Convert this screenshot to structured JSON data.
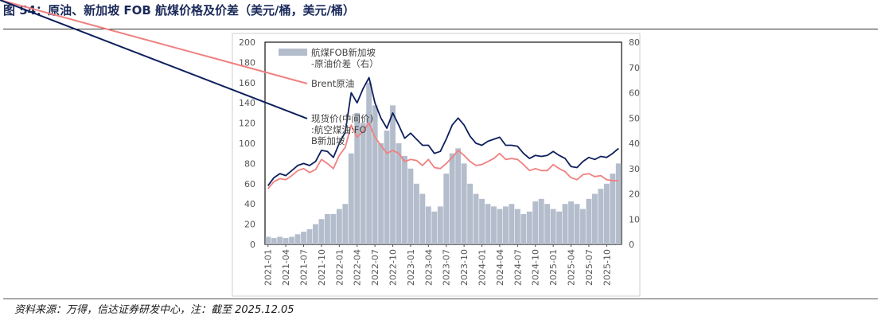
{
  "figure": {
    "title": "图 54：原油、新加坡 FOB 航煤价格及价差（美元/桶，美元/桶）",
    "source": "资料来源：万得，信达证券研发中心，注：截至 2025.12.05"
  },
  "chart_data": {
    "type": "line",
    "x_ticks": [
      "2021-01",
      "2021-04",
      "2021-07",
      "2021-10",
      "2022-01",
      "2022-04",
      "2022-07",
      "2022-10",
      "2023-01",
      "2023-04",
      "2023-07",
      "2023-10",
      "2024-01",
      "2024-04",
      "2024-07",
      "2024-10",
      "2025-01",
      "2025-04",
      "2025-07",
      "2025-10"
    ],
    "x_range": [
      "2021-01",
      "2025-12"
    ],
    "y_left": {
      "ticks": [
        0,
        20,
        40,
        60,
        80,
        100,
        120,
        140,
        160,
        180,
        200
      ],
      "range": [
        0,
        200
      ]
    },
    "y_right": {
      "ticks": [
        0,
        10,
        20,
        30,
        40,
        50,
        60,
        70,
        80
      ],
      "range": [
        0,
        80
      ]
    },
    "legend_position": "top-left",
    "series": [
      {
        "name": "航煤FOB新加坡-原油价差（右）",
        "type": "bar",
        "axis": "right",
        "color": "#b4bdcc",
        "x": [
          "2021-01",
          "2021-02",
          "2021-03",
          "2021-04",
          "2021-05",
          "2021-06",
          "2021-07",
          "2021-08",
          "2021-09",
          "2021-10",
          "2021-11",
          "2021-12",
          "2022-01",
          "2022-02",
          "2022-03",
          "2022-04",
          "2022-05",
          "2022-06",
          "2022-07",
          "2022-08",
          "2022-09",
          "2022-10",
          "2022-11",
          "2022-12",
          "2023-01",
          "2023-02",
          "2023-03",
          "2023-04",
          "2023-05",
          "2023-06",
          "2023-07",
          "2023-08",
          "2023-09",
          "2023-10",
          "2023-11",
          "2023-12",
          "2024-01",
          "2024-02",
          "2024-03",
          "2024-04",
          "2024-05",
          "2024-06",
          "2024-07",
          "2024-08",
          "2024-09",
          "2024-10",
          "2024-11",
          "2024-12",
          "2025-01",
          "2025-02",
          "2025-03",
          "2025-04",
          "2025-05",
          "2025-06",
          "2025-07",
          "2025-08",
          "2025-09",
          "2025-10",
          "2025-11",
          "2025-12"
        ],
        "values": [
          3,
          2.5,
          3,
          2.5,
          3,
          4,
          5,
          6,
          8,
          10,
          12,
          12,
          14,
          16,
          36,
          52,
          48,
          64,
          55,
          40,
          45,
          55,
          40,
          35,
          30,
          24,
          20,
          15,
          13,
          15,
          28,
          36,
          38,
          32,
          24,
          20,
          18,
          16,
          15,
          14,
          15,
          16,
          14,
          12,
          13,
          17,
          18,
          16,
          14,
          13,
          16,
          17,
          16,
          14,
          18,
          20,
          22,
          24,
          28,
          32
        ]
      },
      {
        "name": "Brent原油",
        "type": "line",
        "axis": "left",
        "color": "#f08080",
        "x": [
          "2021-01",
          "2021-02",
          "2021-03",
          "2021-04",
          "2021-05",
          "2021-06",
          "2021-07",
          "2021-08",
          "2021-09",
          "2021-10",
          "2021-11",
          "2021-12",
          "2022-01",
          "2022-02",
          "2022-03",
          "2022-04",
          "2022-05",
          "2022-06",
          "2022-07",
          "2022-08",
          "2022-09",
          "2022-10",
          "2022-11",
          "2022-12",
          "2023-01",
          "2023-02",
          "2023-03",
          "2023-04",
          "2023-05",
          "2023-06",
          "2023-07",
          "2023-08",
          "2023-09",
          "2023-10",
          "2023-11",
          "2023-12",
          "2024-01",
          "2024-02",
          "2024-03",
          "2024-04",
          "2024-05",
          "2024-06",
          "2024-07",
          "2024-08",
          "2024-09",
          "2024-10",
          "2024-11",
          "2024-12",
          "2025-01",
          "2025-02",
          "2025-03",
          "2025-04",
          "2025-05",
          "2025-06",
          "2025-07",
          "2025-08",
          "2025-09",
          "2025-10",
          "2025-11",
          "2025-12"
        ],
        "values": [
          55,
          62,
          65,
          64,
          68,
          73,
          75,
          71,
          74,
          84,
          80,
          75,
          88,
          96,
          118,
          106,
          112,
          120,
          106,
          98,
          90,
          93,
          90,
          82,
          84,
          83,
          78,
          84,
          76,
          75,
          80,
          86,
          93,
          88,
          82,
          78,
          79,
          82,
          85,
          90,
          84,
          85,
          84,
          79,
          73,
          75,
          73,
          73,
          79,
          75,
          72,
          66,
          64,
          69,
          70,
          67,
          68,
          64,
          63,
          63
        ]
      },
      {
        "name": "现货价(中间价):航空煤油:FOB新加坡",
        "type": "line",
        "axis": "left",
        "color": "#0d1f5c",
        "x": [
          "2021-01",
          "2021-02",
          "2021-03",
          "2021-04",
          "2021-05",
          "2021-06",
          "2021-07",
          "2021-08",
          "2021-09",
          "2021-10",
          "2021-11",
          "2021-12",
          "2022-01",
          "2022-02",
          "2022-03",
          "2022-04",
          "2022-05",
          "2022-06",
          "2022-07",
          "2022-08",
          "2022-09",
          "2022-10",
          "2022-11",
          "2022-12",
          "2023-01",
          "2023-02",
          "2023-03",
          "2023-04",
          "2023-05",
          "2023-06",
          "2023-07",
          "2023-08",
          "2023-09",
          "2023-10",
          "2023-11",
          "2023-12",
          "2024-01",
          "2024-02",
          "2024-03",
          "2024-04",
          "2024-05",
          "2024-06",
          "2024-07",
          "2024-08",
          "2024-09",
          "2024-10",
          "2024-11",
          "2024-12",
          "2025-01",
          "2025-02",
          "2025-03",
          "2025-04",
          "2025-05",
          "2025-06",
          "2025-07",
          "2025-08",
          "2025-09",
          "2025-10",
          "2025-11",
          "2025-12"
        ],
        "values": [
          58,
          66,
          70,
          68,
          73,
          78,
          80,
          78,
          82,
          93,
          92,
          86,
          100,
          111,
          150,
          140,
          154,
          165,
          140,
          125,
          115,
          130,
          118,
          105,
          110,
          104,
          98,
          98,
          90,
          92,
          104,
          118,
          125,
          118,
          107,
          100,
          98,
          102,
          104,
          106,
          98,
          98,
          97,
          90,
          85,
          88,
          87,
          88,
          92,
          88,
          85,
          77,
          76,
          82,
          86,
          84,
          87,
          86,
          90,
          95
        ]
      }
    ]
  }
}
